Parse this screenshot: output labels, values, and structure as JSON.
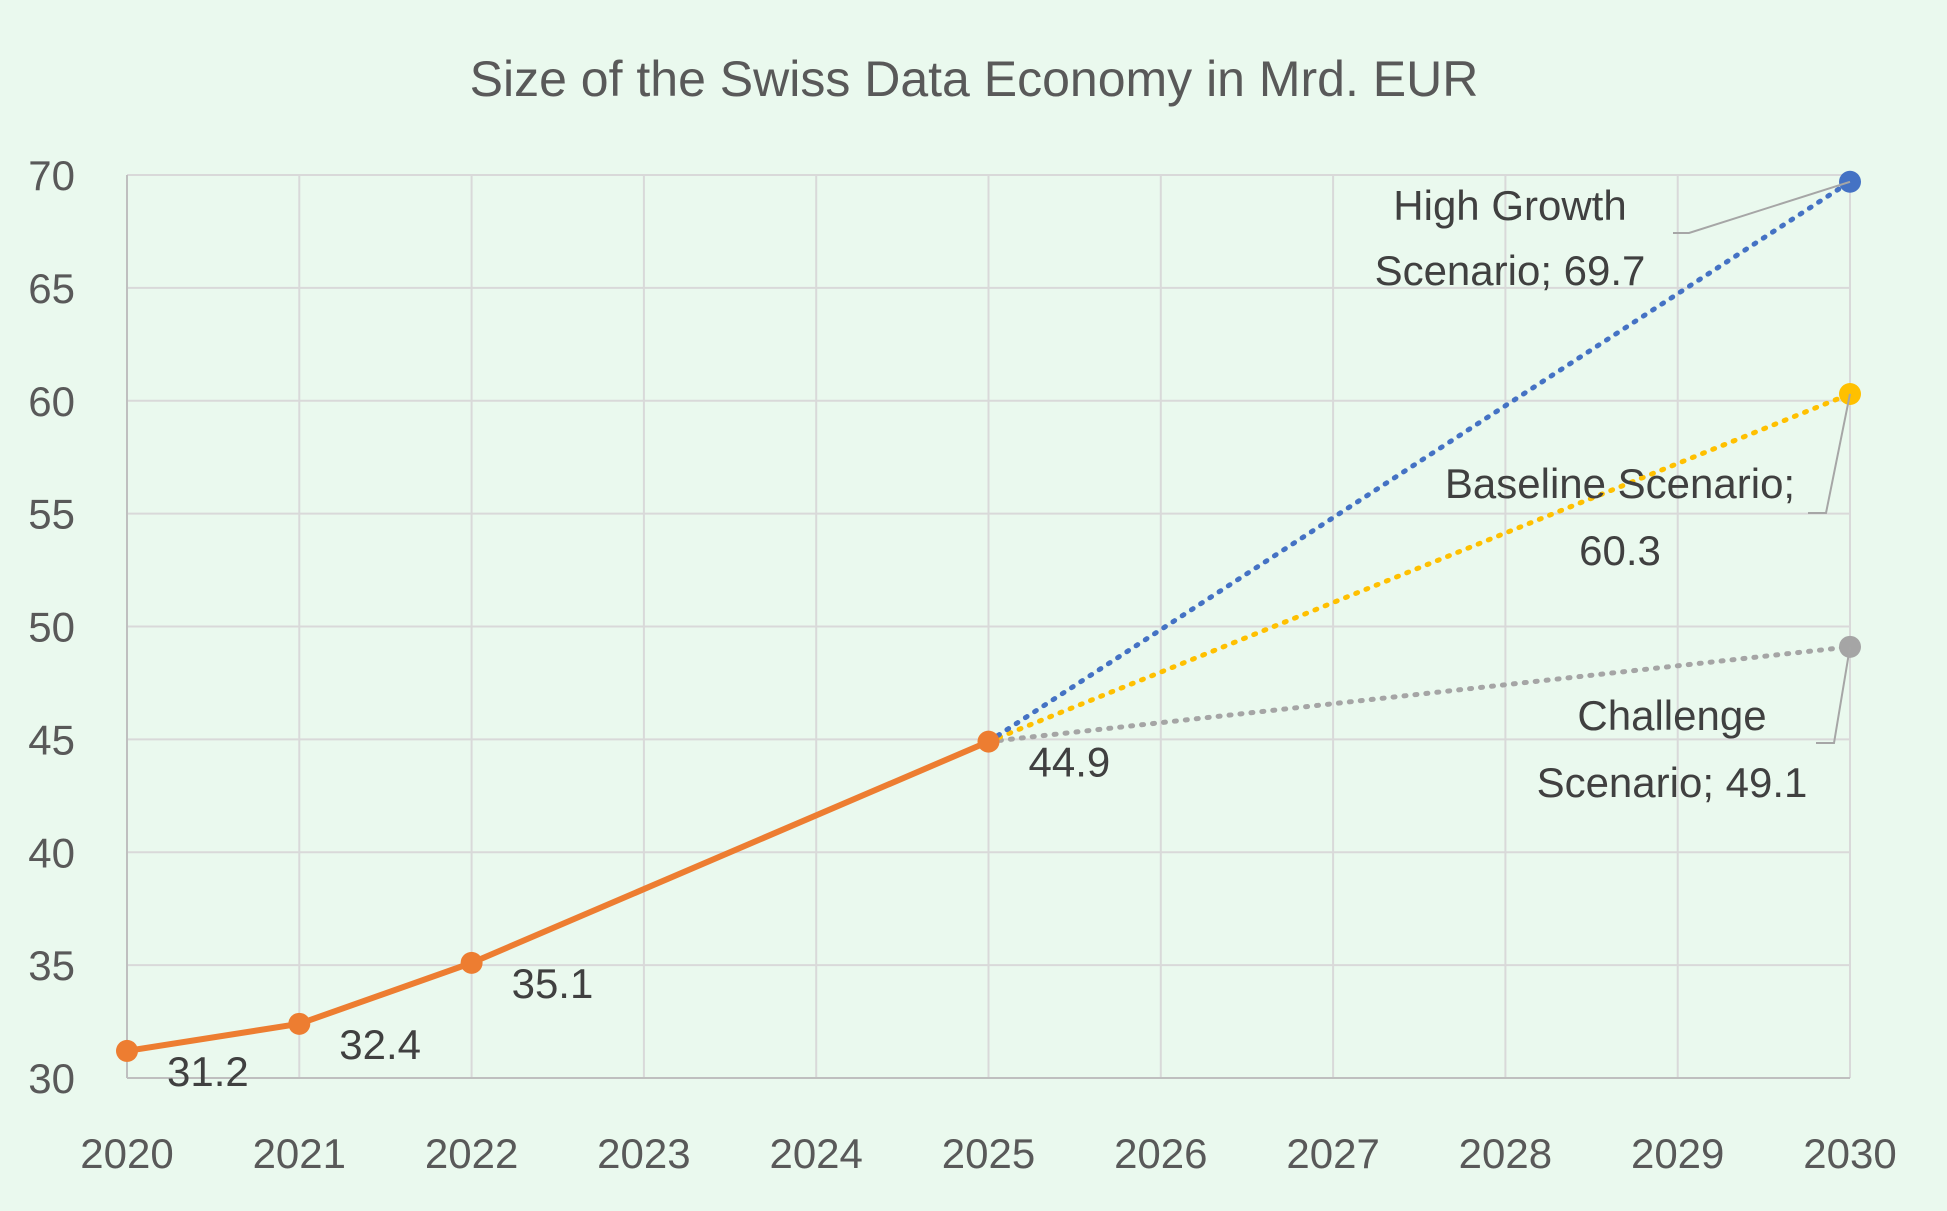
{
  "chart_data": {
    "type": "line",
    "title": "Size of the Swiss Data Economy in Mrd. EUR",
    "xlabel": "",
    "ylabel": "",
    "x_ticks": [
      "2020",
      "2021",
      "2022",
      "2023",
      "2024",
      "2025",
      "2026",
      "2027",
      "2028",
      "2029",
      "2030"
    ],
    "y_ticks": [
      "30",
      "35",
      "40",
      "45",
      "50",
      "55",
      "60",
      "65",
      "70"
    ],
    "xlim": [
      2020,
      2030
    ],
    "ylim": [
      30,
      70
    ],
    "grid": true,
    "legend": "none",
    "series": [
      {
        "key": "historical",
        "style": "solid",
        "color": "#ed7d31",
        "points": [
          {
            "x": 2020,
            "y": 31.2,
            "label": "31.2"
          },
          {
            "x": 2021,
            "y": 32.4,
            "label": "32.4"
          },
          {
            "x": 2022,
            "y": 35.1,
            "label": "35.1"
          },
          {
            "x": 2025,
            "y": 44.9,
            "label": "44.9"
          }
        ]
      },
      {
        "key": "high",
        "style": "dotted",
        "color": "#4472c4",
        "points": [
          {
            "x": 2025,
            "y": 44.9
          },
          {
            "x": 2030,
            "y": 69.7
          }
        ],
        "end_label": [
          "High Growth",
          "Scenario; 69.7"
        ]
      },
      {
        "key": "baseline",
        "style": "dotted",
        "color": "#ffc000",
        "points": [
          {
            "x": 2025,
            "y": 44.9
          },
          {
            "x": 2030,
            "y": 60.3
          }
        ],
        "end_label": [
          "Baseline Scenario;",
          "60.3"
        ]
      },
      {
        "key": "challenge",
        "style": "dotted",
        "color": "#a5a5a5",
        "points": [
          {
            "x": 2025,
            "y": 44.9
          },
          {
            "x": 2030,
            "y": 49.1
          }
        ],
        "end_label": [
          "Challenge",
          "Scenario; 49.1"
        ]
      }
    ]
  }
}
